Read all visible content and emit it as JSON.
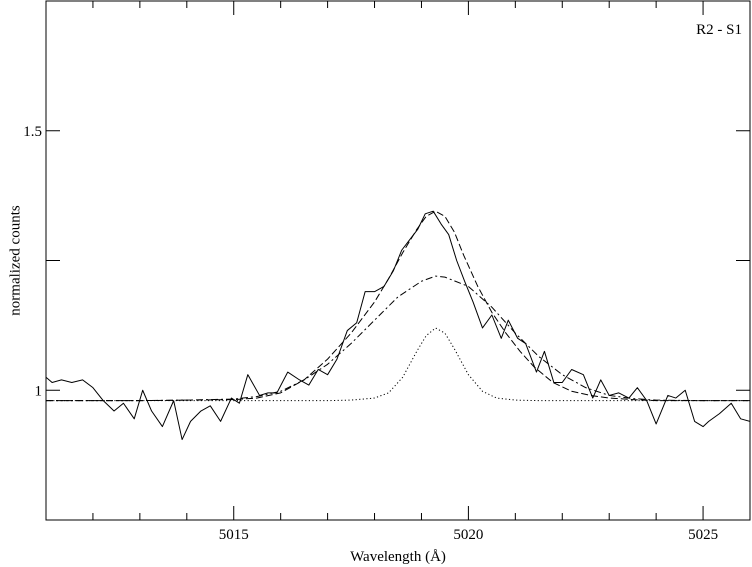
{
  "chart_data": {
    "type": "line",
    "title": "",
    "panel_label": "R2 - S1",
    "xlabel": "Wavelength  (Å)",
    "ylabel": "normalized counts",
    "xlim": [
      5011,
      5026
    ],
    "ylim": [
      0.75,
      1.75
    ],
    "grid": false,
    "legend": "none",
    "x_ticks": [
      {
        "value": 5015,
        "label": "5015"
      },
      {
        "value": 5020,
        "label": "5020"
      },
      {
        "value": 5025,
        "label": "5025"
      }
    ],
    "x_minor_ticks": [
      5012,
      5013,
      5014,
      5016,
      5017,
      5018,
      5019,
      5021,
      5022,
      5023,
      5024
    ],
    "y_ticks": [
      {
        "value": 0.75,
        "label": ""
      },
      {
        "value": 1.0,
        "label": "1"
      },
      {
        "value": 1.25,
        "label": ""
      },
      {
        "value": 1.5,
        "label": "1.5"
      }
    ],
    "series": [
      {
        "style": "solid",
        "x": [
          5011.0,
          5011.13,
          5011.33,
          5011.55,
          5011.78,
          5012.0,
          5012.22,
          5012.45,
          5012.65,
          5012.88,
          5013.06,
          5013.25,
          5013.48,
          5013.72,
          5013.9,
          5014.08,
          5014.3,
          5014.5,
          5014.72,
          5014.95,
          5015.12,
          5015.3,
          5015.55,
          5015.73,
          5015.92,
          5016.15,
          5016.4,
          5016.6,
          5016.8,
          5017.0,
          5017.2,
          5017.42,
          5017.62,
          5017.8,
          5018.0,
          5018.2,
          5018.4,
          5018.58,
          5018.75,
          5018.92,
          5019.08,
          5019.25,
          5019.42,
          5019.58,
          5019.75,
          5019.92,
          5020.1,
          5020.3,
          5020.5,
          5020.7,
          5020.85,
          5021.05,
          5021.22,
          5021.45,
          5021.62,
          5021.82,
          5022.0,
          5022.2,
          5022.45,
          5022.65,
          5022.82,
          5023.0,
          5023.2,
          5023.42,
          5023.6,
          5023.8,
          5024.0,
          5024.25,
          5024.42,
          5024.62,
          5024.82,
          5025.0,
          5025.12,
          5025.35,
          5025.6,
          5025.8,
          5026.0
        ],
        "y": [
          1.025,
          1.015,
          1.02,
          1.015,
          1.02,
          1.005,
          0.98,
          0.96,
          0.975,
          0.945,
          1.0,
          0.96,
          0.93,
          0.98,
          0.905,
          0.94,
          0.96,
          0.97,
          0.94,
          0.985,
          0.975,
          1.03,
          0.99,
          0.995,
          0.995,
          1.035,
          1.02,
          1.01,
          1.04,
          1.03,
          1.06,
          1.115,
          1.13,
          1.19,
          1.19,
          1.2,
          1.23,
          1.27,
          1.29,
          1.31,
          1.34,
          1.345,
          1.32,
          1.3,
          1.25,
          1.21,
          1.17,
          1.12,
          1.145,
          1.1,
          1.135,
          1.1,
          1.09,
          1.035,
          1.075,
          1.015,
          1.015,
          1.04,
          1.03,
          0.985,
          1.02,
          0.99,
          0.995,
          0.985,
          1.005,
          0.98,
          0.935,
          0.99,
          0.985,
          1.0,
          0.94,
          0.93,
          0.94,
          0.955,
          0.975,
          0.945,
          0.94
        ]
      },
      {
        "style": "dashed",
        "x": [
          5011.0,
          5012.0,
          5013.0,
          5014.0,
          5015.0,
          5015.5,
          5016.0,
          5016.5,
          5017.0,
          5017.5,
          5018.0,
          5018.3,
          5018.6,
          5018.9,
          5019.1,
          5019.3,
          5019.5,
          5019.7,
          5019.9,
          5020.2,
          5020.5,
          5020.8,
          5021.1,
          5021.4,
          5021.8,
          5022.2,
          5022.6,
          5023.0,
          5023.5,
          5024.0,
          5025.0,
          5026.0
        ],
        "y": [
          0.98,
          0.98,
          0.98,
          0.981,
          0.982,
          0.985,
          0.995,
          1.02,
          1.06,
          1.11,
          1.17,
          1.215,
          1.265,
          1.31,
          1.335,
          1.345,
          1.335,
          1.305,
          1.26,
          1.2,
          1.15,
          1.11,
          1.075,
          1.045,
          1.015,
          0.998,
          0.99,
          0.985,
          0.982,
          0.98,
          0.98,
          0.98
        ]
      },
      {
        "style": "dashdot",
        "x": [
          5011.0,
          5012.0,
          5013.0,
          5014.0,
          5015.0,
          5015.5,
          5016.0,
          5016.5,
          5017.0,
          5017.5,
          5018.0,
          5018.5,
          5019.0,
          5019.3,
          5019.5,
          5020.0,
          5020.5,
          5021.0,
          5021.5,
          5022.0,
          5022.5,
          5023.0,
          5023.5,
          5024.0,
          5025.0,
          5026.0
        ],
        "y": [
          0.98,
          0.98,
          0.98,
          0.981,
          0.983,
          0.988,
          0.998,
          1.02,
          1.05,
          1.09,
          1.135,
          1.18,
          1.21,
          1.22,
          1.218,
          1.2,
          1.16,
          1.11,
          1.065,
          1.03,
          1.005,
          0.99,
          0.984,
          0.981,
          0.98,
          0.98
        ]
      },
      {
        "style": "dotted",
        "x": [
          5011.0,
          5014.0,
          5016.0,
          5017.0,
          5017.5,
          5018.0,
          5018.3,
          5018.6,
          5018.9,
          5019.1,
          5019.3,
          5019.5,
          5019.7,
          5020.0,
          5020.3,
          5020.6,
          5021.0,
          5021.5,
          5022.0,
          5023.0,
          5026.0
        ],
        "y": [
          0.98,
          0.98,
          0.98,
          0.98,
          0.981,
          0.985,
          0.995,
          1.025,
          1.075,
          1.105,
          1.12,
          1.11,
          1.08,
          1.03,
          0.998,
          0.985,
          0.981,
          0.98,
          0.98,
          0.98,
          0.98
        ]
      }
    ]
  }
}
